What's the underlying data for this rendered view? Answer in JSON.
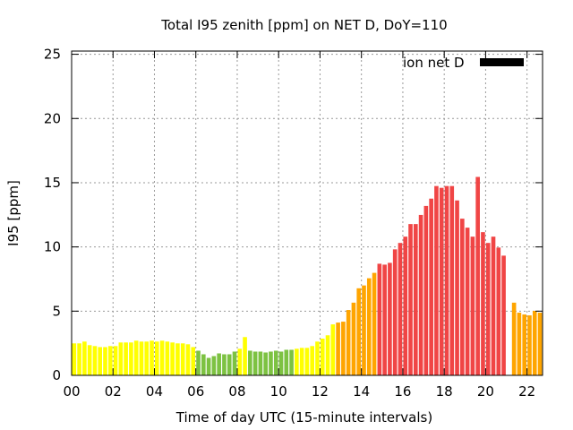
{
  "chart_data": {
    "type": "bar",
    "title": "Total I95 zenith [ppm] on NET D, DoY=110",
    "xlabel": "Time of day UTC (15-minute intervals)",
    "ylabel": "I95 [ppm]",
    "xlim": [
      0,
      22.75
    ],
    "ylim": [
      0,
      25.25
    ],
    "interval_hours": 0.25,
    "grid": true,
    "x_ticks": [
      0,
      2,
      4,
      6,
      8,
      10,
      12,
      14,
      16,
      18,
      20,
      22
    ],
    "x_tick_labels": [
      "00",
      "02",
      "04",
      "06",
      "08",
      "10",
      "12",
      "14",
      "16",
      "18",
      "20",
      "22"
    ],
    "y_ticks": [
      0,
      5,
      10,
      15,
      20,
      25
    ],
    "y_tick_labels": [
      "0",
      "5",
      "10",
      "15",
      "20",
      "25"
    ],
    "legend": {
      "label": "ion net D",
      "placement": "top-right",
      "color": "#000000"
    },
    "color_scale": [
      {
        "max": 1.99,
        "color": "#7dc242"
      },
      {
        "max": 4.0,
        "color": "#ffff00"
      },
      {
        "max": 8.0,
        "color": "#ffa500"
      },
      {
        "max": 100,
        "color": "#f04545"
      }
    ],
    "values": [
      2.49,
      2.49,
      2.63,
      2.35,
      2.28,
      2.2,
      2.2,
      2.28,
      2.28,
      2.56,
      2.56,
      2.56,
      2.7,
      2.63,
      2.63,
      2.7,
      2.63,
      2.7,
      2.63,
      2.56,
      2.49,
      2.49,
      2.42,
      2.2,
      1.92,
      1.64,
      1.36,
      1.5,
      1.71,
      1.64,
      1.64,
      1.85,
      2.07,
      2.98,
      1.92,
      1.85,
      1.85,
      1.78,
      1.85,
      1.92,
      1.85,
      1.99,
      1.99,
      2.07,
      2.14,
      2.14,
      2.28,
      2.63,
      2.86,
      3.12,
      3.97,
      4.11,
      4.18,
      5.09,
      5.66,
      6.78,
      7.0,
      7.56,
      7.98,
      8.69,
      8.62,
      8.76,
      9.81,
      10.31,
      10.8,
      11.78,
      11.78,
      12.49,
      13.19,
      13.76,
      14.74,
      14.6,
      14.74,
      14.74,
      13.62,
      12.2,
      11.5,
      10.8,
      15.45,
      11.15,
      10.31,
      10.8,
      9.95,
      9.32,
      null,
      5.66,
      4.88,
      4.74,
      4.67,
      5.02,
      4.88
    ]
  }
}
